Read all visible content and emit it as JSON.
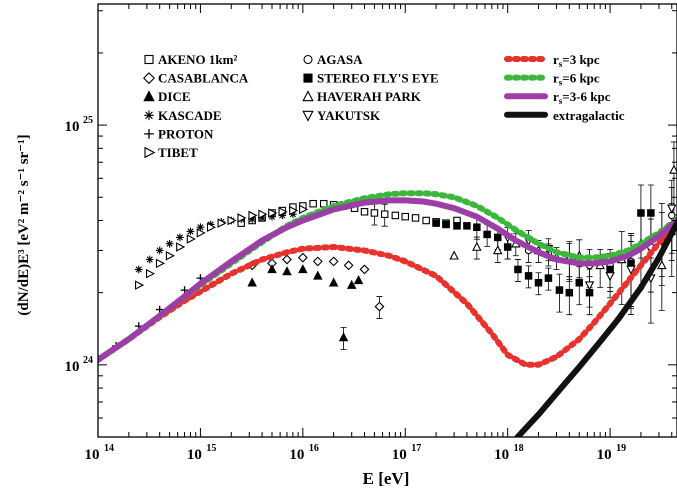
{
  "chart_data": {
    "type": "scatter",
    "xlabel": "E [eV]",
    "ylabel": "(dN/dE)E³ [eV² m⁻² s⁻¹ sr⁻¹]",
    "x_scale": "log",
    "y_scale": "log",
    "xlim": [
      100000000000000.0,
      4.5e+19
    ],
    "ylim": [
      5e+23,
      3.2e+25
    ],
    "x_ticks": [
      {
        "value": 100000000000000.0,
        "base": "10",
        "exp": "14"
      },
      {
        "value": 1000000000000000.0,
        "base": "10",
        "exp": "15"
      },
      {
        "value": 1e+16,
        "base": "10",
        "exp": "16"
      },
      {
        "value": 1e+17,
        "base": "10",
        "exp": "17"
      },
      {
        "value": 1e+18,
        "base": "10",
        "exp": "18"
      },
      {
        "value": 1e+19,
        "base": "10",
        "exp": "19"
      }
    ],
    "y_ticks": [
      {
        "value": 1e+24,
        "base": "10",
        "exp": "24"
      },
      {
        "value": 1e+25,
        "base": "10",
        "exp": "25"
      }
    ],
    "grid": false,
    "legend_position": "top",
    "experiments": [
      {
        "name": "AKENO 1km²",
        "marker": "square-open",
        "points": [
          [
            2500000000000000.0,
            3.9e+24
          ],
          [
            3200000000000000.0,
            4e+24
          ],
          [
            4000000000000000.0,
            4.1e+24
          ],
          [
            5000000000000000.0,
            4.3e+24
          ],
          [
            6300000000000000.0,
            4.4e+24
          ],
          [
            8000000000000000.0,
            4.55e+24
          ],
          [
            1e+16,
            4.6e+24
          ],
          [
            1.26e+16,
            4.7e+24
          ],
          [
            1.6e+16,
            4.7e+24
          ],
          [
            2e+16,
            4.65e+24
          ],
          [
            2.5e+16,
            4.6e+24
          ],
          [
            3.2e+16,
            4.5e+24
          ],
          [
            4e+16,
            4.35e+24
          ],
          [
            5e+16,
            4.3e+24
          ],
          [
            6.3e+16,
            4.25e+24
          ],
          [
            8e+16,
            4.2e+24
          ],
          [
            1e+17,
            4.15e+24
          ],
          [
            1.26e+17,
            4.1e+24
          ],
          [
            1.6e+17,
            4e+24
          ],
          [
            2e+17,
            3.95e+24
          ],
          [
            2.5e+17,
            3.9e+24
          ],
          [
            3.2e+17,
            4e+24
          ]
        ]
      },
      {
        "name": "CASABLANCA",
        "marker": "diamond-open",
        "points": [
          [
            3200000000000000.0,
            2.6e+24
          ],
          [
            5000000000000000.0,
            2.65e+24
          ],
          [
            7000000000000000.0,
            2.75e+24
          ],
          [
            1e+16,
            2.8e+24
          ],
          [
            1.4e+16,
            2.7e+24
          ],
          [
            2e+16,
            2.7e+24
          ],
          [
            2.8e+16,
            2.6e+24
          ],
          [
            4e+16,
            2.5e+24
          ],
          [
            5.6e+16,
            1.75e+24
          ]
        ]
      },
      {
        "name": "DICE",
        "marker": "triangle-filled",
        "points": [
          [
            3200000000000000.0,
            2.2e+24
          ],
          [
            5000000000000000.0,
            2.5e+24
          ],
          [
            7000000000000000.0,
            2.45e+24
          ],
          [
            1e+16,
            2.5e+24
          ],
          [
            1.4e+16,
            2.35e+24
          ],
          [
            2e+16,
            2.2e+24
          ],
          [
            2.5e+16,
            1.3e+24
          ],
          [
            3e+16,
            2.15e+24
          ],
          [
            3.5e+16,
            2.25e+24
          ]
        ]
      },
      {
        "name": "KASCADE",
        "marker": "asterisk",
        "points": [
          [
            250000000000000.0,
            2.5e+24
          ],
          [
            320000000000000.0,
            2.75e+24
          ],
          [
            400000000000000.0,
            3e+24
          ],
          [
            500000000000000.0,
            3.2e+24
          ],
          [
            630000000000000.0,
            3.4e+24
          ],
          [
            800000000000000.0,
            3.6e+24
          ],
          [
            1000000000000000.0,
            3.75e+24
          ],
          [
            1260000000000000.0,
            3.85e+24
          ],
          [
            1600000000000000.0,
            3.95e+24
          ],
          [
            2000000000000000.0,
            4e+24
          ],
          [
            2500000000000000.0,
            4.05e+24
          ],
          [
            3200000000000000.0,
            4.05e+24
          ],
          [
            4000000000000000.0,
            4.1e+24
          ],
          [
            5000000000000000.0,
            4.15e+24
          ],
          [
            6300000000000000.0,
            4.2e+24
          ],
          [
            8000000000000000.0,
            4.25e+24
          ]
        ]
      },
      {
        "name": "PROTON",
        "marker": "plus",
        "points": [
          [
            150000000000000.0,
            1.2e+24
          ],
          [
            250000000000000.0,
            1.45e+24
          ],
          [
            400000000000000.0,
            1.7e+24
          ],
          [
            700000000000000.0,
            2.05e+24
          ],
          [
            1000000000000000.0,
            2.3e+24
          ]
        ]
      },
      {
        "name": "TIBET",
        "marker": "triangle-right-open",
        "points": [
          [
            250000000000000.0,
            2.15e+24
          ],
          [
            320000000000000.0,
            2.4e+24
          ],
          [
            400000000000000.0,
            2.65e+24
          ],
          [
            500000000000000.0,
            2.85e+24
          ],
          [
            630000000000000.0,
            3.1e+24
          ],
          [
            800000000000000.0,
            3.35e+24
          ],
          [
            1000000000000000.0,
            3.55e+24
          ],
          [
            1260000000000000.0,
            3.75e+24
          ],
          [
            1600000000000000.0,
            3.9e+24
          ],
          [
            2000000000000000.0,
            4e+24
          ],
          [
            2500000000000000.0,
            4.1e+24
          ],
          [
            3200000000000000.0,
            4.2e+24
          ],
          [
            4000000000000000.0,
            4.25e+24
          ],
          [
            5000000000000000.0,
            4.3e+24
          ],
          [
            6300000000000000.0,
            4.35e+24
          ],
          [
            8000000000000000.0,
            4.4e+24
          ],
          [
            1e+16,
            4.45e+24
          ]
        ]
      },
      {
        "name": "AGASA",
        "marker": "circle-open",
        "points": [
          [
            1e+18,
            3.1e+24
          ],
          [
            1.6e+18,
            3e+24
          ],
          [
            2.5e+18,
            2.9e+24
          ],
          [
            4e+18,
            2.75e+24
          ],
          [
            6.3e+18,
            2.6e+24
          ],
          [
            1e+19,
            2.6e+24
          ],
          [
            1.6e+19,
            2.7e+24
          ],
          [
            2.5e+19,
            3.1e+24
          ],
          [
            3.2e+19,
            3.6e+24
          ],
          [
            4e+19,
            4.2e+24
          ]
        ]
      },
      {
        "name": "STEREO FLY'S EYE",
        "marker": "square-filled",
        "points": [
          [
            2e+17,
            3.9e+24
          ],
          [
            2.5e+17,
            3.85e+24
          ],
          [
            3.2e+17,
            3.8e+24
          ],
          [
            4e+17,
            3.8e+24
          ],
          [
            5e+17,
            3.75e+24
          ],
          [
            6.3e+17,
            3.5e+24
          ],
          [
            8e+17,
            3.4e+24
          ],
          [
            1e+18,
            3.1e+24
          ],
          [
            1.26e+18,
            2.5e+24
          ],
          [
            1.6e+18,
            2.35e+24
          ],
          [
            2e+18,
            2.2e+24
          ],
          [
            2.5e+18,
            2.3e+24
          ],
          [
            3.2e+18,
            2.05e+24
          ],
          [
            4e+18,
            2e+24
          ],
          [
            5e+18,
            2.2e+24
          ],
          [
            6.3e+18,
            2e+24
          ],
          [
            1e+19,
            2.5e+24
          ],
          [
            1.6e+19,
            2.65e+24
          ],
          [
            2e+19,
            4.3e+24
          ],
          [
            2.5e+19,
            4.3e+24
          ],
          [
            3.2e+19,
            3.3e+24
          ],
          [
            4e+19,
            3.6e+24
          ]
        ]
      },
      {
        "name": "HAVERAH PARK",
        "marker": "triangle-open",
        "points": [
          [
            3e+17,
            2.85e+24
          ],
          [
            5e+17,
            3.1e+24
          ],
          [
            8e+17,
            3e+24
          ],
          [
            1.2e+18,
            3.2e+24
          ],
          [
            2e+18,
            3e+24
          ],
          [
            3e+18,
            2.8e+24
          ],
          [
            5e+18,
            2.85e+24
          ],
          [
            8e+18,
            2.6e+24
          ],
          [
            1.3e+19,
            2.75e+24
          ],
          [
            2e+19,
            3.2e+24
          ],
          [
            3.2e+19,
            2.6e+24
          ],
          [
            4.2e+19,
            6.5e+24
          ]
        ]
      },
      {
        "name": "YAKUTSK",
        "marker": "triangle-down-open",
        "points": [
          [
            1e+18,
            3.4e+24
          ],
          [
            1.6e+18,
            3.3e+24
          ],
          [
            2.5e+18,
            3.05e+24
          ],
          [
            4e+18,
            2.8e+24
          ],
          [
            6.3e+18,
            2.15e+24
          ],
          [
            1e+19,
            2.35e+24
          ],
          [
            1.6e+19,
            2.5e+24
          ],
          [
            2.5e+19,
            2.3e+24
          ],
          [
            4e+19,
            4.5e+24
          ]
        ]
      }
    ],
    "series": [
      {
        "name": "r_s=3 kpc",
        "name_main": "r",
        "name_sub": "s",
        "name_rest": "=3 kpc",
        "color": "#e8322d",
        "style": "dashed",
        "x": [
          100000000000000.0,
          200000000000000.0,
          400000000000000.0,
          700000000000000.0,
          1000000000000000.0,
          2000000000000000.0,
          4000000000000000.0,
          7000000000000000.0,
          1e+16,
          2e+16,
          4e+16,
          7e+16,
          1e+17,
          2e+17,
          4e+17,
          7e+17,
          1e+18,
          1.5e+18,
          2e+18,
          3e+18,
          5e+18,
          7e+18,
          1e+19,
          2e+19,
          4.5e+19
        ],
        "y": [
          1.05e+24,
          1.28e+24,
          1.58e+24,
          1.85e+24,
          2.02e+24,
          2.4e+24,
          2.75e+24,
          2.95e+24,
          3.05e+24,
          3.1e+24,
          3e+24,
          2.85e+24,
          2.7e+24,
          2.35e+24,
          1.8e+24,
          1.35e+24,
          1.1e+24,
          1e+24,
          1e+24,
          1.08e+24,
          1.28e+24,
          1.5e+24,
          1.8e+24,
          2.6e+24,
          4e+24
        ]
      },
      {
        "name": "r_s=6 kpc",
        "name_main": "r",
        "name_sub": "s",
        "name_rest": "=6 kpc",
        "color": "#3cb63c",
        "style": "dashed",
        "x": [
          100000000000000.0,
          200000000000000.0,
          400000000000000.0,
          700000000000000.0,
          1000000000000000.0,
          2000000000000000.0,
          4000000000000000.0,
          7000000000000000.0,
          1e+16,
          2e+16,
          4e+16,
          7e+16,
          1e+17,
          1.5e+17,
          2e+17,
          3e+17,
          5e+17,
          8e+17,
          1.2e+18,
          2e+18,
          3e+18,
          5e+18,
          7e+18,
          1e+19,
          1.5e+19,
          2e+19,
          3e+19,
          4.5e+19
        ],
        "y": [
          1.05e+24,
          1.28e+24,
          1.6e+24,
          1.92e+24,
          2.15e+24,
          2.65e+24,
          3.25e+24,
          3.8e+24,
          4.1e+24,
          4.6e+24,
          4.95e+24,
          5.15e+24,
          5.2e+24,
          5.2e+24,
          5.15e+24,
          5e+24,
          4.6e+24,
          4.1e+24,
          3.65e+24,
          3.2e+24,
          2.95e+24,
          2.8e+24,
          2.8e+24,
          2.85e+24,
          3e+24,
          3.2e+24,
          3.55e+24,
          4.05e+24
        ]
      },
      {
        "name": "r_s=3-6 kpc",
        "name_main": "r",
        "name_sub": "s",
        "name_rest": "=3-6 kpc",
        "color": "#9b3ea6",
        "style": "solid",
        "x": [
          100000000000000.0,
          200000000000000.0,
          400000000000000.0,
          700000000000000.0,
          1000000000000000.0,
          2000000000000000.0,
          4000000000000000.0,
          7000000000000000.0,
          1e+16,
          2e+16,
          4e+16,
          7e+16,
          1e+17,
          1.5e+17,
          2e+17,
          3e+17,
          5e+17,
          8e+17,
          1.2e+18,
          2e+18,
          3e+18,
          5e+18,
          7e+18,
          1e+19,
          1.5e+19,
          2e+19,
          3e+19,
          4.5e+19
        ],
        "y": [
          1.05e+24,
          1.28e+24,
          1.6e+24,
          1.93e+24,
          2.18e+24,
          2.7e+24,
          3.3e+24,
          3.75e+24,
          4e+24,
          4.45e+24,
          4.75e+24,
          4.85e+24,
          4.85e+24,
          4.8e+24,
          4.7e+24,
          4.5e+24,
          4.15e+24,
          3.7e+24,
          3.3e+24,
          2.95e+24,
          2.75e+24,
          2.65e+24,
          2.65e+24,
          2.7e+24,
          2.85e+24,
          3.05e+24,
          3.45e+24,
          4e+24
        ]
      },
      {
        "name": "extragalactic",
        "color": "#111111",
        "style": "solid",
        "x": [
          1.25e+18,
          2e+18,
          3e+18,
          5e+18,
          8e+18,
          1.2e+19,
          2e+19,
          3e+19,
          4.5e+19
        ],
        "y": [
          5e+23,
          6.2e+23,
          7.6e+23,
          9.8e+23,
          1.25e+24,
          1.55e+24,
          2.1e+24,
          2.8e+24,
          3.9e+24
        ]
      }
    ]
  }
}
